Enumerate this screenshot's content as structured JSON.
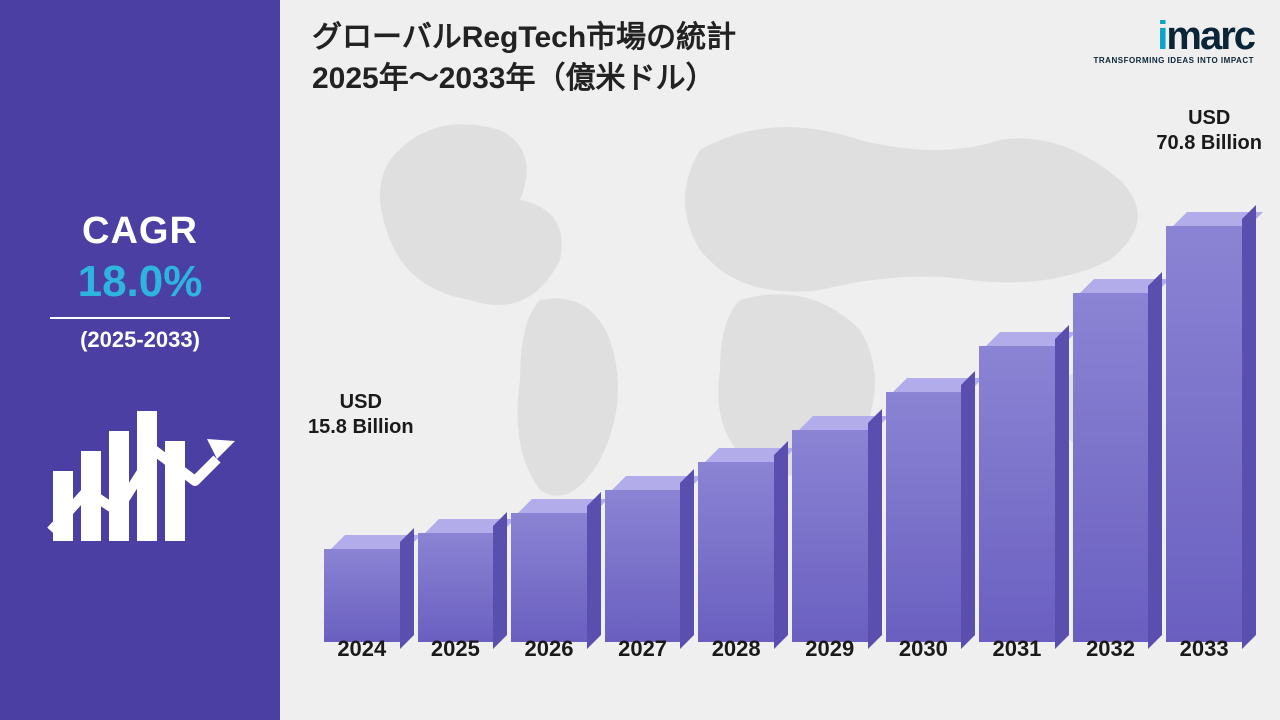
{
  "sidebar": {
    "cagr_label": "CAGR",
    "cagr_value": "18.0%",
    "cagr_value_color": "#2db5e0",
    "cagr_period": "(2025-2033)",
    "bg_color": "#4b3fa3"
  },
  "header": {
    "title_line1": "グローバルRegTech市場の統計",
    "title_line2": "2025年～2033年（億米ドル）"
  },
  "logo": {
    "brand_i": "i",
    "brand_rest": "marc",
    "tagline": "TRANSFORMING IDEAS INTO IMPACT",
    "accent_color": "#0aa6c9",
    "dark_color": "#0a2538"
  },
  "chart": {
    "type": "bar",
    "first_label_line1": "USD",
    "first_label_line2": "15.8 Billion",
    "last_label_line1": "USD",
    "last_label_line2": "70.8 Billion",
    "years": [
      "2024",
      "2025",
      "2026",
      "2027",
      "2028",
      "2029",
      "2030",
      "2031",
      "2032",
      "2033"
    ],
    "values_billion_usd": [
      15.8,
      18.6,
      22.0,
      25.9,
      30.6,
      36.1,
      42.6,
      50.3,
      59.4,
      70.8
    ],
    "ylim": [
      0,
      80
    ],
    "bar_colors": {
      "front_top": "#8b84d4",
      "front_bottom": "#6a5fc0",
      "top_face": "#b2adea",
      "side_face": "#5a4fae"
    },
    "background_color": "#efefef",
    "label_fontsize": 22,
    "value_label_fontsize": 20
  }
}
